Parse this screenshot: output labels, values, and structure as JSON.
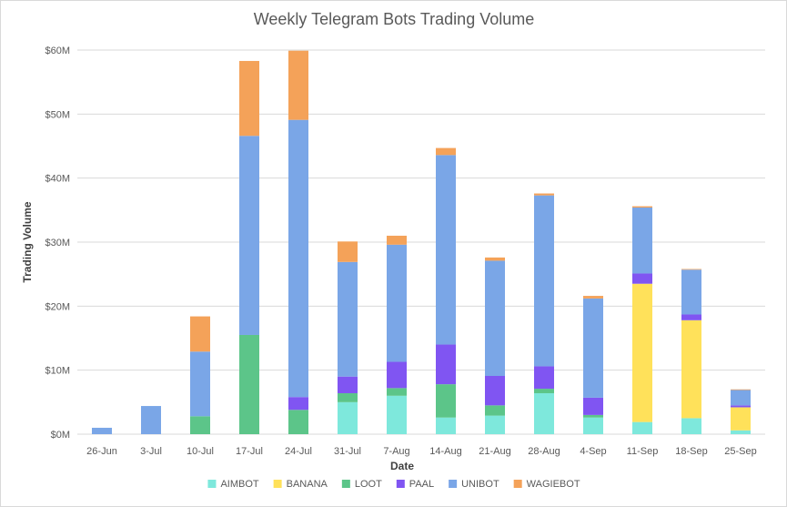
{
  "chart_data": {
    "type": "bar",
    "stacked": true,
    "title": "Weekly Telegram Bots Trading Volume",
    "xlabel": "Date",
    "ylabel": "Trading Volume",
    "ylim": [
      0,
      60
    ],
    "yticks": [
      0,
      10,
      20,
      30,
      40,
      50,
      60
    ],
    "ytick_labels": [
      "$0M",
      "$10M",
      "$20M",
      "$30M",
      "$40M",
      "$50M",
      "$60M"
    ],
    "grid": true,
    "legend_position": "bottom",
    "categories": [
      "26-Jun",
      "3-Jul",
      "10-Jul",
      "17-Jul",
      "24-Jul",
      "31-Jul",
      "7-Aug",
      "14-Aug",
      "21-Aug",
      "28-Aug",
      "4-Sep",
      "11-Sep",
      "18-Sep",
      "25-Sep"
    ],
    "series": [
      {
        "name": "AIMBOT",
        "color": "#7ee8dc",
        "values": [
          0,
          0,
          0,
          0,
          0,
          5.0,
          6.0,
          2.6,
          2.9,
          6.4,
          2.6,
          1.9,
          2.5,
          0.6
        ]
      },
      {
        "name": "BANANA",
        "color": "#ffe15a",
        "values": [
          0,
          0,
          0,
          0,
          0,
          0,
          0,
          0,
          0,
          0,
          0,
          21.6,
          15.3,
          3.6
        ]
      },
      {
        "name": "LOOT",
        "color": "#5cc589",
        "values": [
          0,
          0,
          2.8,
          15.5,
          3.8,
          1.4,
          1.2,
          5.2,
          1.6,
          0.7,
          0.4,
          0,
          0,
          0
        ]
      },
      {
        "name": "PAAL",
        "color": "#8055f2",
        "values": [
          0,
          0,
          0,
          0,
          2.0,
          2.6,
          4.1,
          6.2,
          4.6,
          3.5,
          2.7,
          1.6,
          0.9,
          0.3
        ]
      },
      {
        "name": "UNIBOT",
        "color": "#7aa6e7",
        "values": [
          1.0,
          4.4,
          10.1,
          31.1,
          43.3,
          17.9,
          18.3,
          29.6,
          18.0,
          26.7,
          15.5,
          10.3,
          7.0,
          2.4
        ]
      },
      {
        "name": "WAGIEBOT",
        "color": "#f4a259",
        "values": [
          0,
          0,
          5.5,
          11.7,
          10.8,
          3.2,
          1.4,
          1.1,
          0.5,
          0.3,
          0.4,
          0.2,
          0.1,
          0.1
        ]
      }
    ]
  }
}
